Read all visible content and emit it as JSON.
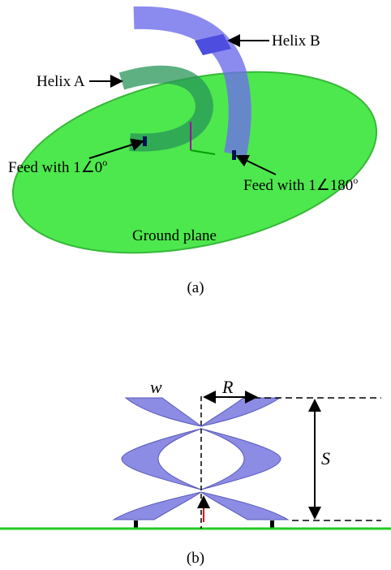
{
  "panel_a": {
    "helix_a": "Helix A",
    "helix_b": "Helix B",
    "feed_1": {
      "text": "Feed with 1∠0",
      "sup": "o"
    },
    "feed_2": {
      "text": "Feed with 1∠180",
      "sup": "o"
    },
    "ground": "Ground plane",
    "caption": "(a)"
  },
  "panel_b": {
    "w": "w",
    "R": "R",
    "S": "S",
    "caption": "(b)"
  }
}
